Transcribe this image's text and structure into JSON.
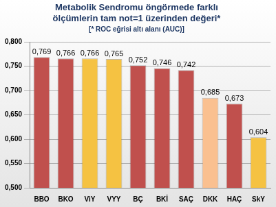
{
  "chart_data": {
    "type": "bar",
    "title": [
      "Metabolik Sendromu öngörmede farklı",
      "ölçümlerin tam not=1 üzerinden değeri*"
    ],
    "subtitle": "[* ROC eğrisi altı alanı (AUC)]",
    "categories": [
      "BBO",
      "BKO",
      "ViY",
      "VYY",
      "BÇ",
      "BKİ",
      "SAÇ",
      "DKK",
      "HAÇ",
      "SkY"
    ],
    "values": [
      0.769,
      0.766,
      0.766,
      0.765,
      0.752,
      0.746,
      0.742,
      0.685,
      0.673,
      0.604
    ],
    "value_labels": [
      "0,769",
      "0,766",
      "0,766",
      "0,765",
      "0,752",
      "0,746",
      "0,742",
      "0,685",
      "0,673",
      "0,604"
    ],
    "colors": [
      "#c0504d",
      "#c0504d",
      "#f5c242",
      "#f5c242",
      "#c0504d",
      "#c0504d",
      "#c0504d",
      "#fac090",
      "#c0504d",
      "#f5c242"
    ],
    "ylim": [
      0.5,
      0.8
    ],
    "yticks": [
      {
        "value": 0.5,
        "label": "0,500"
      },
      {
        "value": 0.55,
        "label": "0,550"
      },
      {
        "value": 0.6,
        "label": "0,600"
      },
      {
        "value": 0.65,
        "label": "0,650"
      },
      {
        "value": 0.7,
        "label": "0,700"
      },
      {
        "value": 0.75,
        "label": "0,750"
      },
      {
        "value": 0.8,
        "label": "0,800"
      }
    ],
    "grid": true,
    "data_labels": true
  }
}
